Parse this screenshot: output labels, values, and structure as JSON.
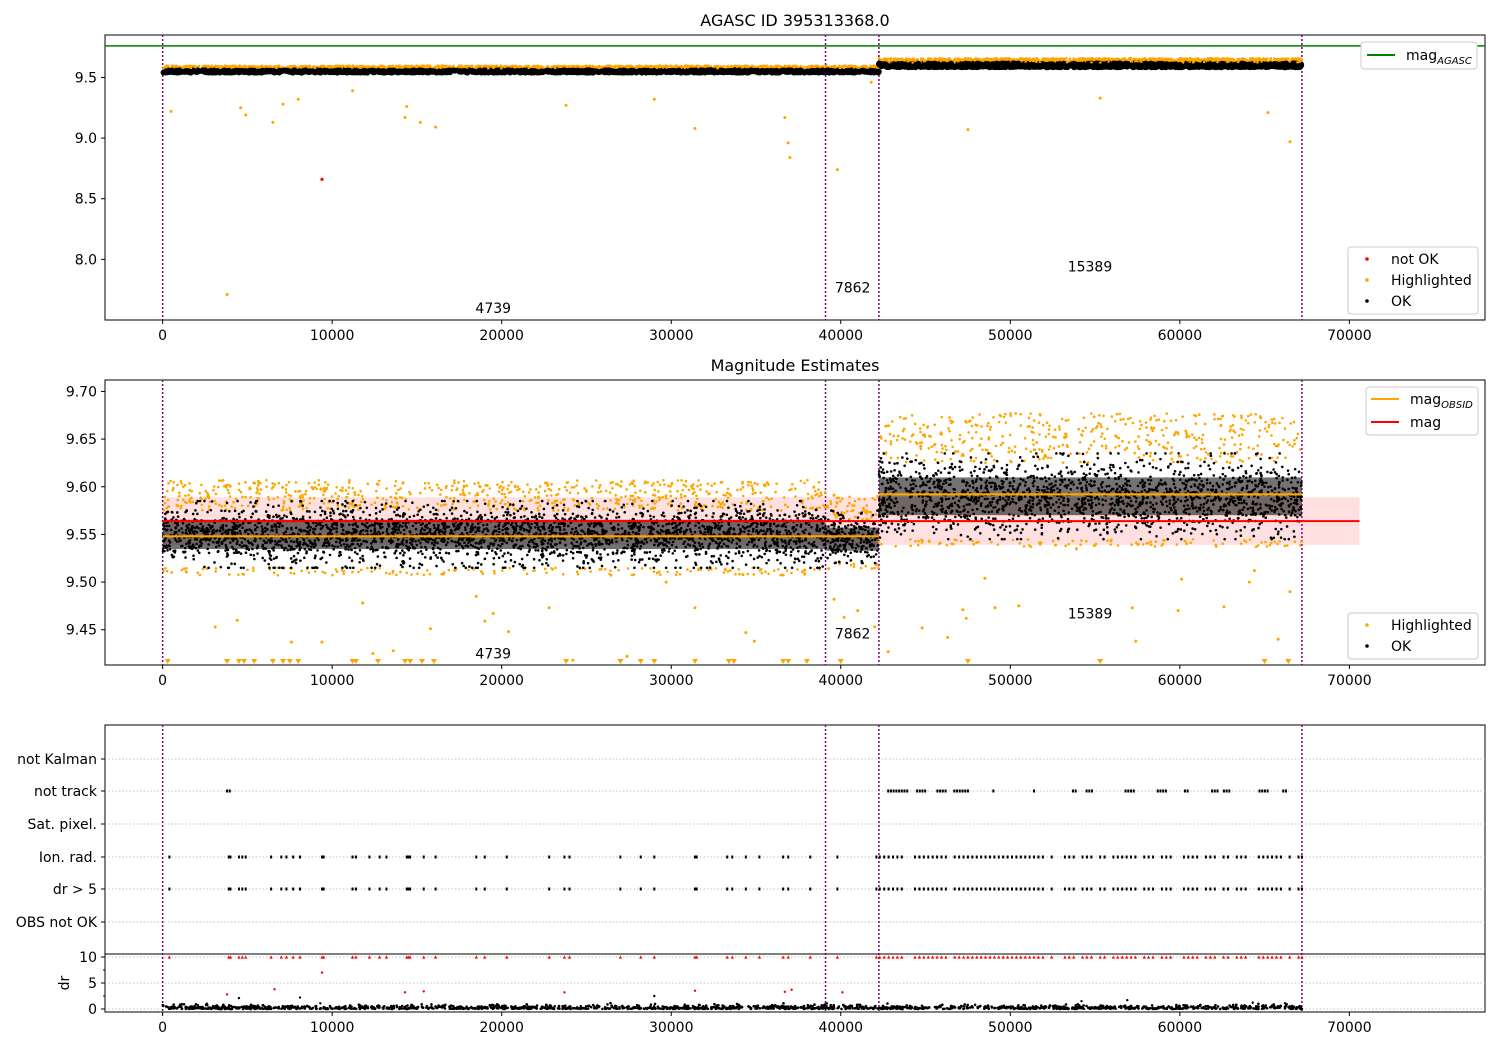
{
  "chart_data": [
    {
      "type": "scatter",
      "title": "AGASC ID 395313368.0",
      "xlim": [
        -3400,
        78000
      ],
      "ylim": [
        7.5,
        9.85
      ],
      "x_ticks": [
        0,
        10000,
        20000,
        30000,
        40000,
        50000,
        60000,
        70000
      ],
      "y_ticks": [
        8.0,
        8.5,
        9.0,
        9.5
      ],
      "grid": false,
      "legend_line": {
        "position": "top-right",
        "entries": [
          {
            "label": "mag",
            "subscript": "AGASC",
            "color": "#008000"
          }
        ]
      },
      "legend_points": {
        "position": "bottom-right",
        "entries": [
          {
            "label": "not OK",
            "color": "#ff0000"
          },
          {
            "label": "Highlighted",
            "color": "#ffa500"
          },
          {
            "label": "OK",
            "color": "#000000"
          }
        ]
      },
      "mag_agasc": 9.76,
      "obsid_boundaries": [
        0,
        39100,
        42250,
        67200
      ],
      "obsid_labels": [
        {
          "text": "4739",
          "x": 19500,
          "y": 7.6
        },
        {
          "text": "7862",
          "x": 40700,
          "y": 7.77
        },
        {
          "text": "15389",
          "x": 54700,
          "y": 7.94
        }
      ],
      "segments": [
        {
          "x_range": [
            0,
            42250
          ],
          "mag": 9.55,
          "spread": 0.025
        },
        {
          "x_range": [
            42250,
            67200
          ],
          "mag": 9.6,
          "spread": 0.04
        }
      ],
      "outliers_highlighted": [
        [
          500,
          9.22
        ],
        [
          3800,
          7.71
        ],
        [
          4600,
          9.25
        ],
        [
          4900,
          9.19
        ],
        [
          6500,
          9.13
        ],
        [
          7100,
          9.28
        ],
        [
          8000,
          9.32
        ],
        [
          11200,
          9.39
        ],
        [
          14400,
          9.26
        ],
        [
          14300,
          9.17
        ],
        [
          15200,
          9.13
        ],
        [
          16100,
          9.09
        ],
        [
          23800,
          9.27
        ],
        [
          29000,
          9.32
        ],
        [
          31400,
          9.08
        ],
        [
          36700,
          9.17
        ],
        [
          36900,
          8.96
        ],
        [
          37000,
          8.84
        ],
        [
          39800,
          8.74
        ],
        [
          41800,
          9.46
        ],
        [
          47500,
          9.07
        ],
        [
          55300,
          9.33
        ],
        [
          65200,
          9.21
        ],
        [
          66500,
          8.97
        ]
      ],
      "outliers_not_ok": [
        [
          9400,
          8.66
        ]
      ]
    },
    {
      "type": "scatter",
      "title": "Magnitude Estimates",
      "xlim": [
        -3400,
        78000
      ],
      "ylim": [
        9.413,
        9.712
      ],
      "x_ticks": [
        0,
        10000,
        20000,
        30000,
        40000,
        50000,
        60000,
        70000
      ],
      "y_ticks": [
        9.45,
        9.5,
        9.55,
        9.6,
        9.65,
        9.7
      ],
      "grid": false,
      "legend_line": {
        "position": "top-right",
        "entries": [
          {
            "label": "mag",
            "subscript": "OBSID",
            "color": "#ffa500"
          },
          {
            "label": "mag",
            "subscript": "",
            "color": "#ff0000"
          }
        ]
      },
      "legend_points": {
        "position": "bottom-right",
        "entries": [
          {
            "label": "Highlighted",
            "color": "#ffa500"
          },
          {
            "label": "OK",
            "color": "#000000"
          }
        ]
      },
      "mag": 9.564,
      "mag_band": [
        9.539,
        9.589
      ],
      "mag_band_x": [
        0,
        70600
      ],
      "mag_obsid": [
        {
          "x_range": [
            0,
            39100
          ],
          "value": 9.548
        },
        {
          "x_range": [
            39100,
            42250
          ],
          "value": 9.548
        },
        {
          "x_range": [
            42250,
            67200
          ],
          "value": 9.592
        }
      ],
      "obsid_boundaries": [
        0,
        39100,
        42250,
        67200
      ],
      "obsid_labels": [
        {
          "text": "4739",
          "x": 19500,
          "y": 9.425
        },
        {
          "text": "7862",
          "x": 40700,
          "y": 9.446
        },
        {
          "text": "15389",
          "x": 54700,
          "y": 9.467
        }
      ],
      "segments": [
        {
          "x_range": [
            0,
            39100
          ],
          "center": 9.55,
          "low": 9.515,
          "high": 9.585,
          "hl_high": 9.605
        },
        {
          "x_range": [
            39100,
            42250
          ],
          "center": 9.545,
          "low": 9.52,
          "high": 9.575,
          "hl_high": 9.59
        },
        {
          "x_range": [
            42250,
            67200
          ],
          "center": 9.59,
          "low": 9.545,
          "high": 9.635,
          "hl_high": 9.675
        }
      ],
      "lower_outliers": [
        [
          3100,
          9.453
        ],
        [
          4400,
          9.46
        ],
        [
          7600,
          9.437
        ],
        [
          9400,
          9.437
        ],
        [
          11800,
          9.478
        ],
        [
          12400,
          9.425
        ],
        [
          13600,
          9.428
        ],
        [
          15800,
          9.451
        ],
        [
          18500,
          9.485
        ],
        [
          19000,
          9.459
        ],
        [
          19500,
          9.467
        ],
        [
          20400,
          9.448
        ],
        [
          22800,
          9.473
        ],
        [
          24200,
          9.418
        ],
        [
          27400,
          9.422
        ],
        [
          29700,
          9.5
        ],
        [
          31400,
          9.473
        ],
        [
          34400,
          9.447
        ],
        [
          34900,
          9.438
        ],
        [
          39600,
          9.482
        ],
        [
          40200,
          9.463
        ],
        [
          41000,
          9.47
        ],
        [
          42000,
          9.453
        ],
        [
          42800,
          9.427
        ],
        [
          44800,
          9.452
        ],
        [
          46300,
          9.442
        ],
        [
          47200,
          9.471
        ],
        [
          47400,
          9.462
        ],
        [
          48500,
          9.504
        ],
        [
          49100,
          9.473
        ],
        [
          50500,
          9.475
        ],
        [
          53900,
          9.535
        ],
        [
          57200,
          9.473
        ],
        [
          57400,
          9.438
        ],
        [
          59900,
          9.47
        ],
        [
          60100,
          9.503
        ],
        [
          62600,
          9.474
        ],
        [
          64100,
          9.5
        ],
        [
          64400,
          9.512
        ],
        [
          65800,
          9.44
        ],
        [
          66500,
          9.49
        ]
      ],
      "below_range_markers": [
        300,
        3800,
        4500,
        4800,
        5400,
        6500,
        7100,
        7500,
        8000,
        11200,
        11400,
        12700,
        14300,
        14600,
        15300,
        16000,
        23800,
        27000,
        28200,
        29000,
        31400,
        33400,
        33700,
        36600,
        36900,
        38000,
        40000,
        47500,
        55300,
        65000,
        66400
      ]
    },
    {
      "type": "scatter",
      "xlim": [
        -3400,
        78000
      ],
      "x_ticks": [
        0,
        10000,
        20000,
        30000,
        40000,
        50000,
        60000,
        70000
      ],
      "flag_rows": [
        "not Kalman",
        "not track",
        "Sat. pixel.",
        "Ion. rad.",
        "dr > 5",
        "OBS not OK"
      ],
      "dr": {
        "ylabel": "dr",
        "ylim": [
          0,
          10
        ],
        "y_ticks": [
          0,
          5,
          10
        ]
      },
      "obsid_boundaries": [
        0,
        39100,
        42250,
        67200
      ],
      "flags": {
        "not_track": [
          [
            3800,
            4000
          ],
          [
            42800,
            44000
          ],
          [
            44500,
            45100
          ],
          [
            45700,
            46200
          ],
          [
            46700,
            47500
          ],
          [
            49000,
            49100
          ],
          [
            51400,
            51500
          ],
          [
            53700,
            53900
          ],
          [
            54500,
            54900
          ],
          [
            56800,
            57400
          ],
          [
            58700,
            59200
          ],
          [
            60300,
            60500
          ],
          [
            61900,
            62300
          ],
          [
            62600,
            63000
          ],
          [
            64700,
            65300
          ],
          [
            66100,
            66300
          ]
        ],
        "ion_rad_sparse": [
          400,
          3900,
          4000,
          4500,
          4700,
          4900,
          6400,
          7000,
          7300,
          7700,
          8100,
          9400,
          9500,
          11200,
          11400,
          12200,
          12800,
          13200,
          14400,
          14500,
          14600,
          15400,
          16100,
          18500,
          19000,
          20300,
          22800,
          23700,
          24000,
          27000,
          28200,
          29000,
          31400,
          31500,
          33300,
          33600,
          34400,
          35200,
          36600,
          36900,
          38200,
          39800
        ]
      },
      "dr_scatter_sparse": [
        [
          3800,
          2.8
        ],
        [
          4500,
          2.1
        ],
        [
          6600,
          3.8
        ],
        [
          8100,
          2.2
        ],
        [
          9400,
          7.0
        ],
        [
          9300,
          1.1
        ],
        [
          14300,
          3.2
        ],
        [
          15400,
          3.4
        ],
        [
          23700,
          3.2
        ],
        [
          29000,
          2.5
        ],
        [
          31400,
          3.5
        ],
        [
          36700,
          3.3
        ],
        [
          37100,
          3.7
        ],
        [
          40100,
          3.2
        ],
        [
          54200,
          1.5
        ],
        [
          56900,
          1.7
        ],
        [
          64300,
          1.2
        ],
        [
          66200,
          1.1
        ]
      ]
    }
  ]
}
